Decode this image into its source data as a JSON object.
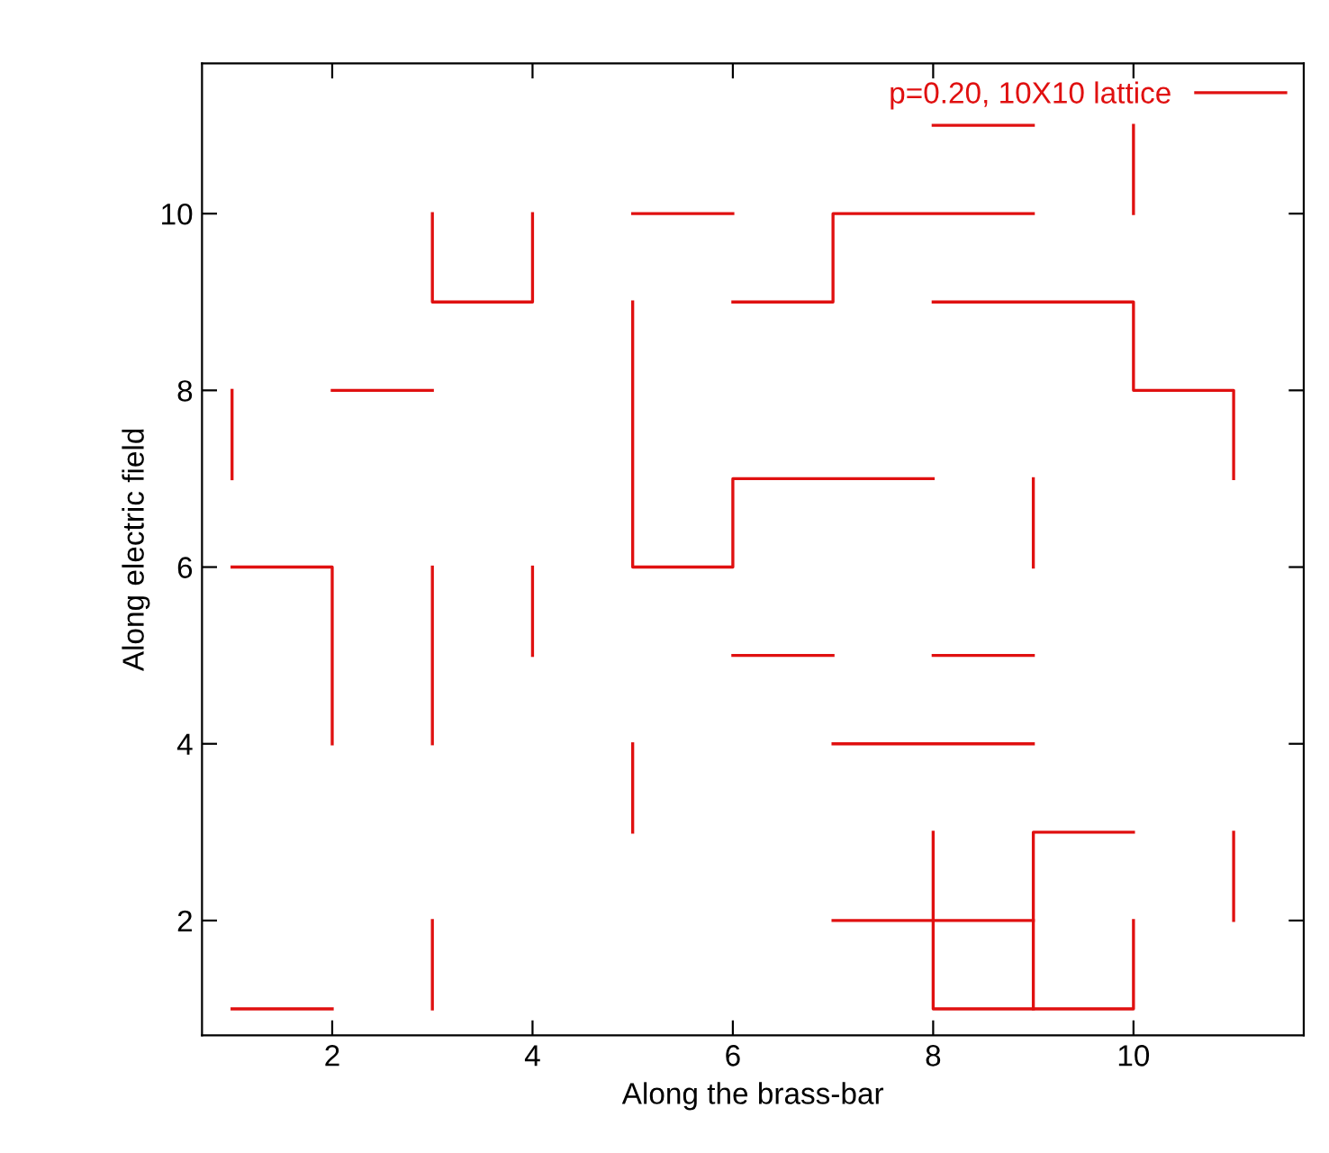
{
  "chart_data": {
    "type": "line",
    "xlabel": "Along the brass-bar",
    "ylabel": "Along electric field",
    "xlim": [
      0.7,
      11.7
    ],
    "ylim": [
      0.7,
      11.7
    ],
    "xticks": [
      2,
      4,
      6,
      8,
      10
    ],
    "yticks": [
      2,
      4,
      6,
      8,
      10
    ],
    "grid": false,
    "legend": "top right",
    "marker": "none",
    "line_style": "solid",
    "series": [
      {
        "name": "p=0.20, 10X10 lattice",
        "color": "#e01010",
        "x": [
          8,
          9
        ],
        "values": [
          11,
          11
        ]
      },
      {
        "color": "#e01010",
        "x": [
          10,
          10
        ],
        "values": [
          10,
          11
        ]
      },
      {
        "color": "#e01010",
        "x": [
          3,
          3,
          4,
          4
        ],
        "values": [
          10,
          9,
          9,
          10
        ]
      },
      {
        "color": "#e01010",
        "x": [
          5,
          6
        ],
        "values": [
          10,
          10
        ]
      },
      {
        "color": "#e01010",
        "x": [
          6,
          7,
          7,
          9
        ],
        "values": [
          9,
          9,
          10,
          10
        ]
      },
      {
        "color": "#e01010",
        "x": [
          8,
          10,
          10,
          11,
          11
        ],
        "values": [
          9,
          9,
          8,
          8,
          7
        ]
      },
      {
        "color": "#e01010",
        "x": [
          2,
          3
        ],
        "values": [
          8,
          8
        ]
      },
      {
        "color": "#e01010",
        "x": [
          1,
          1
        ],
        "values": [
          8,
          7
        ]
      },
      {
        "color": "#e01010",
        "x": [
          5,
          5,
          6,
          6,
          8
        ],
        "values": [
          9,
          6,
          6,
          7,
          7
        ]
      },
      {
        "color": "#e01010",
        "x": [
          9,
          9
        ],
        "values": [
          7,
          6
        ]
      },
      {
        "color": "#e01010",
        "x": [
          1,
          2,
          2
        ],
        "values": [
          6,
          6,
          4
        ]
      },
      {
        "color": "#e01010",
        "x": [
          3,
          3
        ],
        "values": [
          6,
          4
        ]
      },
      {
        "color": "#e01010",
        "x": [
          4,
          4
        ],
        "values": [
          6,
          5
        ]
      },
      {
        "color": "#e01010",
        "x": [
          6,
          7
        ],
        "values": [
          5,
          5
        ]
      },
      {
        "color": "#e01010",
        "x": [
          8,
          9
        ],
        "values": [
          5,
          5
        ]
      },
      {
        "color": "#e01010",
        "x": [
          7,
          9
        ],
        "values": [
          4,
          4
        ]
      },
      {
        "color": "#e01010",
        "x": [
          5,
          5
        ],
        "values": [
          4,
          3
        ]
      },
      {
        "color": "#e01010",
        "x": [
          9,
          9,
          10
        ],
        "values": [
          1,
          3,
          3
        ]
      },
      {
        "color": "#e01010",
        "x": [
          11,
          11
        ],
        "values": [
          3,
          2
        ]
      },
      {
        "color": "#e01010",
        "x": [
          7,
          9
        ],
        "values": [
          2,
          2
        ]
      },
      {
        "color": "#e01010",
        "x": [
          8,
          8,
          10,
          10
        ],
        "values": [
          3,
          1,
          1,
          2
        ]
      },
      {
        "color": "#e01010",
        "x": [
          3,
          3
        ],
        "values": [
          2,
          1
        ]
      },
      {
        "color": "#e01010",
        "x": [
          1,
          2
        ],
        "values": [
          1,
          1
        ]
      }
    ]
  }
}
